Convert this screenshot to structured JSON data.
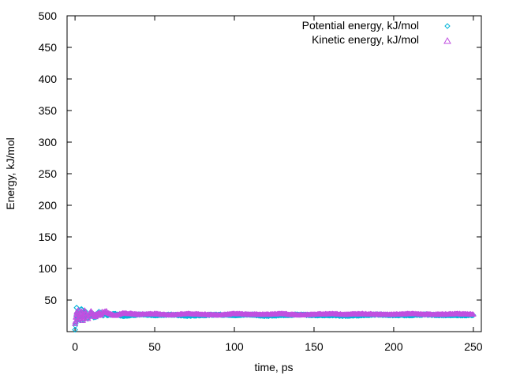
{
  "chart_data": {
    "type": "scatter",
    "title": "",
    "xlabel": "time, ps",
    "ylabel": "Energy, kJ/mol",
    "xlim": [
      -5,
      255
    ],
    "ylim": [
      0,
      500
    ],
    "x_ticks": [
      "0",
      "50",
      "100",
      "150",
      "200",
      "250"
    ],
    "y_ticks": [
      "50",
      "100",
      "150",
      "200",
      "250",
      "300",
      "350",
      "400",
      "450",
      "500"
    ],
    "grid": false,
    "legend_position": "top-right",
    "series": [
      {
        "name": "Potential energy, kJ/mol",
        "marker": "diamond",
        "color": "#00b4d8",
        "x": [
          0,
          0.5,
          1,
          1.5,
          2,
          3,
          4,
          5,
          6,
          8,
          10,
          12,
          15,
          20,
          25,
          30,
          40,
          50,
          60,
          70,
          80,
          90,
          100,
          110,
          120,
          130,
          140,
          150,
          160,
          170,
          180,
          190,
          200,
          210,
          220,
          230,
          240,
          250
        ],
        "y": [
          3,
          15,
          38,
          22,
          33,
          18,
          35,
          20,
          32,
          22,
          30,
          23,
          29,
          26,
          28,
          25,
          27,
          26,
          27,
          25,
          26,
          27,
          26,
          27,
          25,
          26,
          27,
          26,
          26,
          25,
          26,
          27,
          26,
          26,
          27,
          26,
          26,
          26
        ]
      },
      {
        "name": "Kinetic energy, kJ/mol",
        "marker": "triangle",
        "color": "#c050e0",
        "x": [
          0,
          0.5,
          1,
          1.5,
          2,
          3,
          4,
          5,
          6,
          8,
          10,
          12,
          15,
          20,
          25,
          30,
          40,
          50,
          60,
          70,
          80,
          90,
          100,
          110,
          120,
          130,
          140,
          150,
          160,
          170,
          180,
          190,
          200,
          210,
          220,
          230,
          240,
          250
        ],
        "y": [
          12,
          22,
          30,
          18,
          34,
          20,
          31,
          19,
          33,
          21,
          31,
          24,
          28,
          30,
          25,
          29,
          27,
          28,
          26,
          28,
          27,
          26,
          28,
          27,
          27,
          28,
          26,
          27,
          28,
          27,
          28,
          27,
          27,
          28,
          27,
          27,
          28,
          27
        ]
      }
    ]
  }
}
